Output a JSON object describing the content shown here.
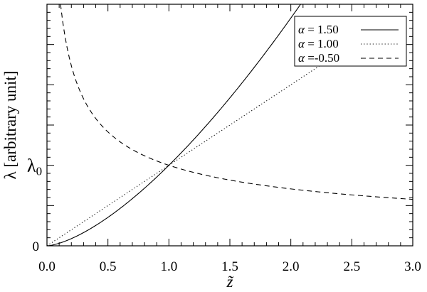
{
  "chart_data": {
    "type": "line",
    "title": "",
    "xlabel": "z̃",
    "ylabel": "λ [arbitrary unit]",
    "xlim": [
      0.0,
      3.0
    ],
    "ylim": [
      0.0,
      3.0
    ],
    "x_ticks": [
      0.0,
      0.5,
      1.0,
      1.5,
      2.0,
      2.5,
      3.0
    ],
    "x_tick_labels": [
      "0.0",
      "0.5",
      "1.0",
      "1.5",
      "2.0",
      "2.5",
      "3.0"
    ],
    "y_tick_labels": [
      {
        "value": 0.0,
        "label": "0"
      },
      {
        "value": 1.0,
        "label": "λ0"
      }
    ],
    "grid": false,
    "legend": "top-right",
    "series": [
      {
        "name": "α = 1.50",
        "alpha": 1.5,
        "style": "solid",
        "x": [
          0.0,
          0.1,
          0.2,
          0.3,
          0.4,
          0.5,
          0.6,
          0.7,
          0.8,
          0.9,
          1.0,
          1.2,
          1.4,
          1.6,
          1.8,
          2.0,
          2.08
        ],
        "y": [
          0.0,
          0.032,
          0.089,
          0.164,
          0.253,
          0.354,
          0.465,
          0.586,
          0.716,
          0.854,
          1.0,
          1.315,
          1.657,
          2.024,
          2.415,
          2.828,
          3.0
        ]
      },
      {
        "name": "α = 1.00",
        "alpha": 1.0,
        "style": "dotted",
        "x": [
          0.0,
          0.5,
          1.0,
          1.5,
          2.0,
          2.3
        ],
        "y": [
          0.0,
          0.5,
          1.0,
          1.5,
          2.0,
          2.3
        ]
      },
      {
        "name": "α =-0.50",
        "alpha": -0.5,
        "style": "dashed",
        "x": [
          0.111,
          0.15,
          0.2,
          0.25,
          0.3,
          0.4,
          0.5,
          0.6,
          0.8,
          1.0,
          1.25,
          1.5,
          2.0,
          2.5,
          3.0
        ],
        "y": [
          3.0,
          2.582,
          2.236,
          2.0,
          1.826,
          1.581,
          1.414,
          1.291,
          1.118,
          1.0,
          0.894,
          0.816,
          0.707,
          0.632,
          0.577
        ]
      }
    ]
  }
}
